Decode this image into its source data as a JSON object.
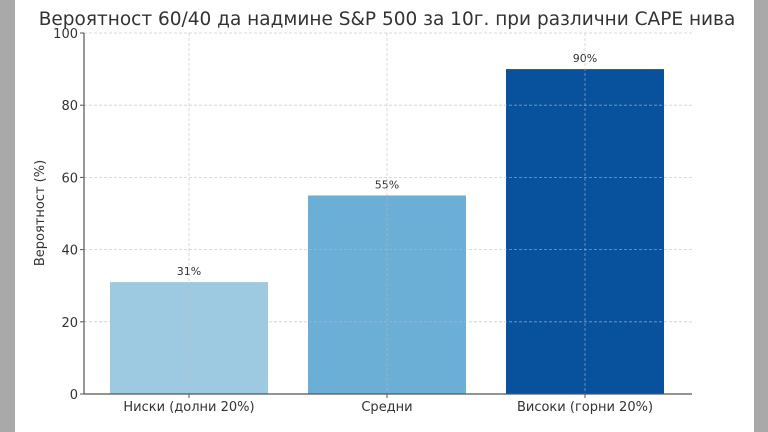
{
  "chart_data": {
    "type": "bar",
    "title": "Вероятност 60/40 да надмине S&P 500 за 10г. при различни CAPE нива",
    "xlabel": "",
    "ylabel": "Вероятност (%)",
    "categories": [
      "Ниски (долни 20%)",
      "Средни",
      "Високи (горни 20%)"
    ],
    "values": [
      31,
      55,
      90
    ],
    "data_labels": [
      "31%",
      "55%",
      "90%"
    ],
    "colors": [
      "#9ecae1",
      "#6baed6",
      "#08519c"
    ],
    "ylim": [
      0,
      100
    ],
    "yticks": [
      0,
      20,
      40,
      60,
      80,
      100
    ],
    "grid": true
  }
}
